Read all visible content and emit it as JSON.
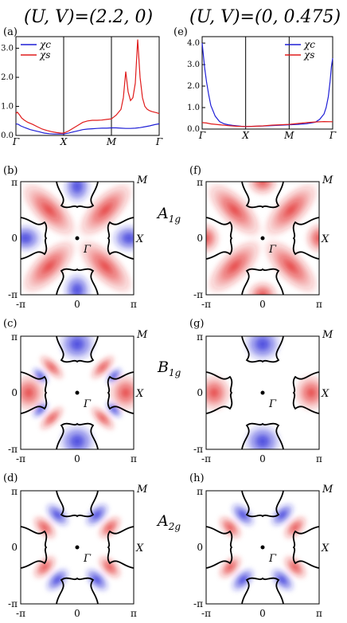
{
  "colors": {
    "charge": "#1f1fd6",
    "spin": "#e01b1b",
    "frame": "#000000",
    "fermi": "#000000"
  },
  "header": {
    "left": {
      "letter": "(a)",
      "title": "(U, V)=(2.2, 0)"
    },
    "right": {
      "letter": "(e)",
      "title": "(U, V)=(0, 0.475)"
    }
  },
  "legend": {
    "charge": "χc",
    "spin": "χs"
  },
  "symmetry_labels": [
    {
      "text": "A1g",
      "base": "A",
      "sub": "1g"
    },
    {
      "text": "B1g",
      "base": "B",
      "sub": "1g"
    },
    {
      "text": "A2g",
      "base": "A",
      "sub": "2g"
    }
  ],
  "map_axes": {
    "x_ticks": [
      "-π",
      "0",
      "π"
    ],
    "y_ticks": [
      "π",
      "0",
      "-π"
    ],
    "gamma": "Γ",
    "corner": "M",
    "edge": "X"
  },
  "panel_letters": {
    "left": [
      "(b)",
      "(c)",
      "(d)"
    ],
    "right": [
      "(f)",
      "(g)",
      "(h)"
    ]
  },
  "chart_data": [
    {
      "type": "line",
      "id": "a",
      "x_ticks": [
        "Γ",
        "X",
        "M",
        "Γ"
      ],
      "y_ticks": [
        "0.0",
        "1.0",
        "2.0",
        "3.0"
      ],
      "ylim": [
        0,
        3.4
      ],
      "legend_position": "top-left",
      "series": [
        {
          "name": "χc",
          "color": "#1f1fd6",
          "x": [
            0,
            0.05,
            0.1,
            0.2,
            0.3,
            0.4,
            0.5,
            0.55,
            0.6,
            0.7,
            0.8,
            0.9,
            1,
            1.1,
            1.2,
            1.3,
            1.4,
            1.5,
            1.6,
            1.7,
            1.8,
            1.9,
            2,
            2.1,
            2.2,
            2.3,
            2.4,
            2.5,
            2.6,
            2.7,
            2.8,
            2.9,
            3
          ],
          "y": [
            0.4,
            0.38,
            0.33,
            0.26,
            0.2,
            0.16,
            0.12,
            0.1,
            0.08,
            0.06,
            0.05,
            0.05,
            0.05,
            0.08,
            0.12,
            0.16,
            0.2,
            0.22,
            0.23,
            0.24,
            0.25,
            0.25,
            0.26,
            0.26,
            0.25,
            0.24,
            0.24,
            0.25,
            0.27,
            0.3,
            0.33,
            0.37,
            0.4
          ]
        },
        {
          "name": "χs",
          "color": "#e01b1b",
          "x": [
            0,
            0.03,
            0.08,
            0.12,
            0.18,
            0.25,
            0.35,
            0.45,
            0.55,
            0.65,
            0.75,
            0.85,
            0.95,
            1,
            1.1,
            1.2,
            1.3,
            1.4,
            1.5,
            1.6,
            1.7,
            1.8,
            1.9,
            2,
            2.1,
            2.2,
            2.25,
            2.3,
            2.35,
            2.4,
            2.45,
            2.5,
            2.55,
            2.6,
            2.65,
            2.7,
            2.75,
            2.8,
            2.85,
            2.9,
            2.95,
            3
          ],
          "y": [
            0.75,
            0.8,
            0.7,
            0.6,
            0.52,
            0.45,
            0.38,
            0.3,
            0.22,
            0.17,
            0.13,
            0.1,
            0.08,
            0.08,
            0.15,
            0.25,
            0.35,
            0.45,
            0.5,
            0.52,
            0.52,
            0.53,
            0.55,
            0.57,
            0.7,
            0.9,
            1.3,
            2.2,
            1.5,
            1.2,
            1.3,
            1.8,
            3.3,
            2.0,
            1.3,
            1.0,
            0.9,
            0.85,
            0.82,
            0.8,
            0.78,
            0.75
          ]
        }
      ]
    },
    {
      "type": "line",
      "id": "e",
      "x_ticks": [
        "Γ",
        "X",
        "M",
        "Γ"
      ],
      "y_ticks": [
        "0.0",
        "1.0",
        "2.0",
        "3.0",
        "4.0"
      ],
      "ylim": [
        0,
        4.3
      ],
      "legend_position": "top-right",
      "series": [
        {
          "name": "χc",
          "color": "#1f1fd6",
          "x": [
            0,
            0.02,
            0.04,
            0.06,
            0.1,
            0.15,
            0.2,
            0.3,
            0.4,
            0.5,
            0.6,
            0.7,
            0.8,
            0.9,
            1,
            1.2,
            1.4,
            1.6,
            1.8,
            2,
            2.2,
            2.4,
            2.6,
            2.7,
            2.8,
            2.85,
            2.9,
            2.94,
            2.97,
            3
          ],
          "y": [
            4.0,
            3.6,
            3.2,
            2.8,
            2.2,
            1.6,
            1.1,
            0.6,
            0.35,
            0.25,
            0.2,
            0.17,
            0.15,
            0.13,
            0.12,
            0.13,
            0.14,
            0.16,
            0.18,
            0.2,
            0.22,
            0.25,
            0.32,
            0.45,
            0.7,
            1.0,
            1.5,
            2.2,
            2.9,
            3.3
          ]
        },
        {
          "name": "χs",
          "color": "#e01b1b",
          "x": [
            0,
            0.1,
            0.2,
            0.4,
            0.6,
            0.8,
            1,
            1.2,
            1.4,
            1.6,
            1.8,
            2,
            2.2,
            2.4,
            2.6,
            2.8,
            3
          ],
          "y": [
            0.3,
            0.28,
            0.24,
            0.2,
            0.16,
            0.13,
            0.12,
            0.13,
            0.15,
            0.18,
            0.2,
            0.22,
            0.26,
            0.3,
            0.33,
            0.35,
            0.34
          ]
        }
      ]
    },
    {
      "type": "heatmap",
      "id": "b",
      "symmetry": "A1g"
    },
    {
      "type": "heatmap",
      "id": "c",
      "symmetry": "B1g"
    },
    {
      "type": "heatmap",
      "id": "d",
      "symmetry": "A2g"
    },
    {
      "type": "heatmap",
      "id": "f",
      "symmetry": "A1g"
    },
    {
      "type": "heatmap",
      "id": "g",
      "symmetry": "B1g"
    },
    {
      "type": "heatmap",
      "id": "h",
      "symmetry": "A2g"
    }
  ]
}
